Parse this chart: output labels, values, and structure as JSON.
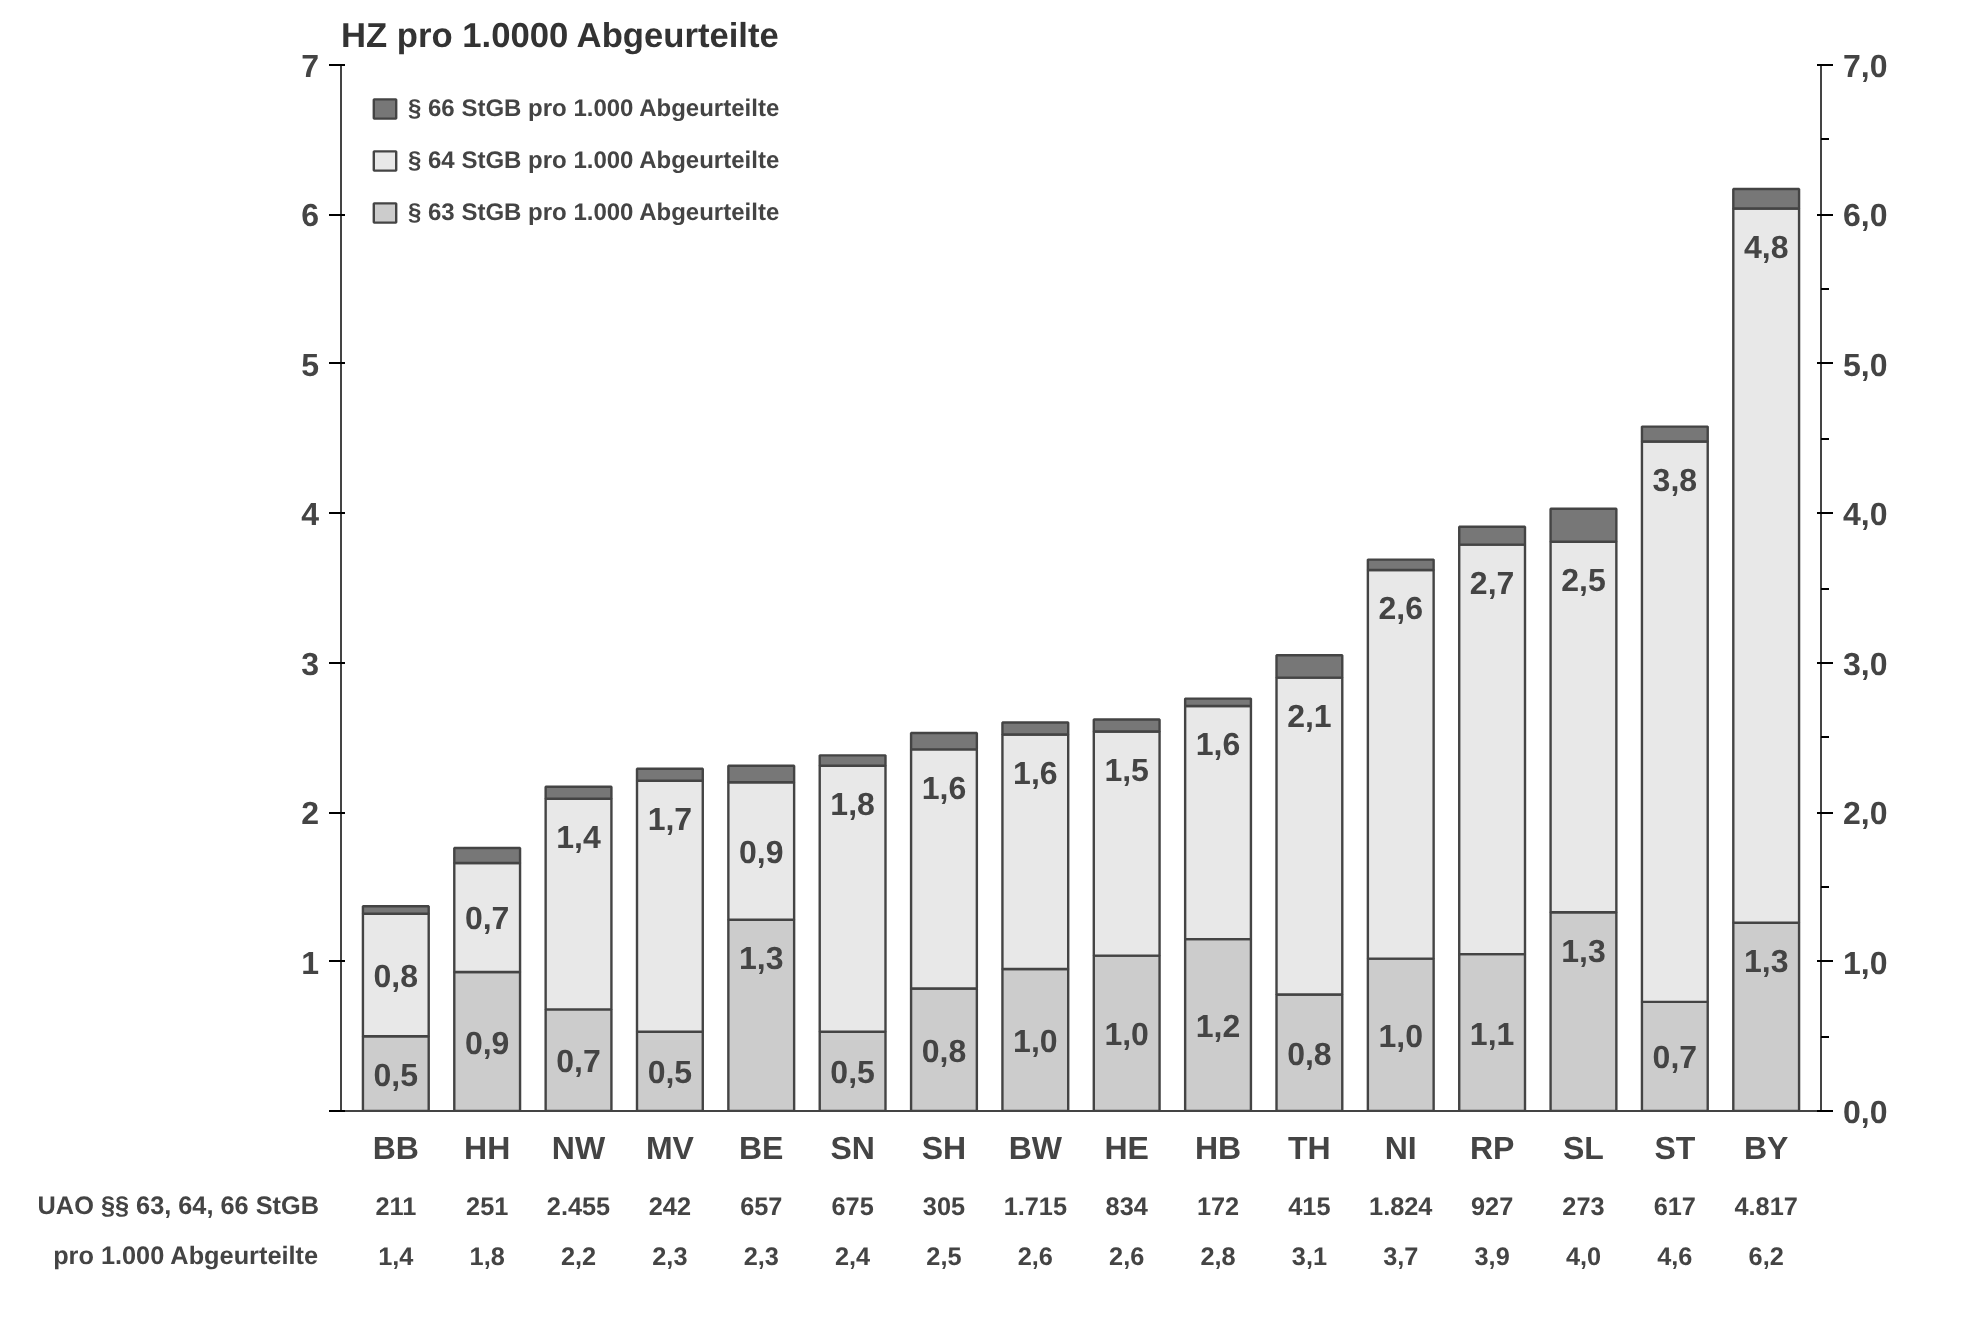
{
  "chart_data": {
    "type": "bar",
    "title": "HZ pro 1.0000 Abgeurteilte",
    "stacked": true,
    "categories": [
      "BB",
      "HH",
      "NW",
      "MV",
      "BE",
      "SN",
      "SH",
      "BW",
      "HE",
      "HB",
      "TH",
      "NI",
      "RP",
      "SL",
      "ST",
      "BY"
    ],
    "series": [
      {
        "name": "§ 63 StGB pro 1.000 Abgeurteilte",
        "color": "#cccccc",
        "values": [
          0.5,
          0.93,
          0.68,
          0.53,
          1.28,
          0.53,
          0.82,
          0.95,
          1.04,
          1.15,
          0.78,
          1.02,
          1.05,
          1.33,
          0.73,
          1.26
        ],
        "value_labels": [
          "0,5",
          "0,9",
          "0,7",
          "0,5",
          "1,3",
          "0,5",
          "0,8",
          "1,0",
          "1,0",
          "1,2",
          "0,8",
          "1,0",
          "1,1",
          "1,3",
          "0,7",
          "1,3"
        ]
      },
      {
        "name": "§ 64 StGB pro 1.000 Abgeurteilte",
        "color": "#e8e8e8",
        "values": [
          0.82,
          0.73,
          1.41,
          1.68,
          0.92,
          1.78,
          1.6,
          1.57,
          1.5,
          1.56,
          2.12,
          2.6,
          2.74,
          2.48,
          3.75,
          4.78
        ],
        "value_labels": [
          "0,8",
          "0,7",
          "1,4",
          "1,7",
          "0,9",
          "1,8",
          "1,6",
          "1,6",
          "1,5",
          "1,6",
          "2,1",
          "2,6",
          "2,7",
          "2,5",
          "3,8",
          "4,8"
        ]
      },
      {
        "name": "§ 66 StGB pro 1.000 Abgeurteilte",
        "color": "#777777",
        "values": [
          0.05,
          0.1,
          0.08,
          0.08,
          0.11,
          0.07,
          0.11,
          0.08,
          0.08,
          0.05,
          0.15,
          0.07,
          0.12,
          0.22,
          0.1,
          0.13
        ]
      }
    ],
    "ylim": [
      0,
      7
    ],
    "yticks": [
      {
        "value": 0,
        "label": null
      },
      1,
      2,
      3,
      4,
      5,
      6,
      7
    ],
    "y2lim": [
      0,
      7
    ],
    "y2ticks": [
      {
        "value": 0,
        "label": "0,0"
      },
      {
        "value": 1,
        "label": "1,0"
      },
      {
        "value": 2,
        "label": "2,0"
      },
      {
        "value": 3,
        "label": "3,0"
      },
      {
        "value": 4,
        "label": "4,0"
      },
      {
        "value": 5,
        "label": "5,0"
      },
      {
        "value": 6,
        "label": "6,0"
      },
      {
        "value": 7,
        "label": "7,0"
      }
    ],
    "annotations": [
      "UAO §§ 63, 64, 66 StGB",
      "pro 1.000 Abgeurteilte",
      "211",
      "251",
      "2.455",
      "242",
      "657",
      "675",
      "305",
      "1.715",
      "834",
      "172",
      "415",
      "1.824",
      "927",
      "273",
      "617",
      "4.817",
      "1,4",
      "1,8",
      "2,2",
      "2,3",
      "2,3",
      "2,4",
      "2,5",
      "2,6",
      "2,6",
      "2,8",
      "3,1",
      "3,7",
      "3,9",
      "4,0",
      "4,6",
      "6,2"
    ],
    "grid": false,
    "legend": "top left"
  }
}
